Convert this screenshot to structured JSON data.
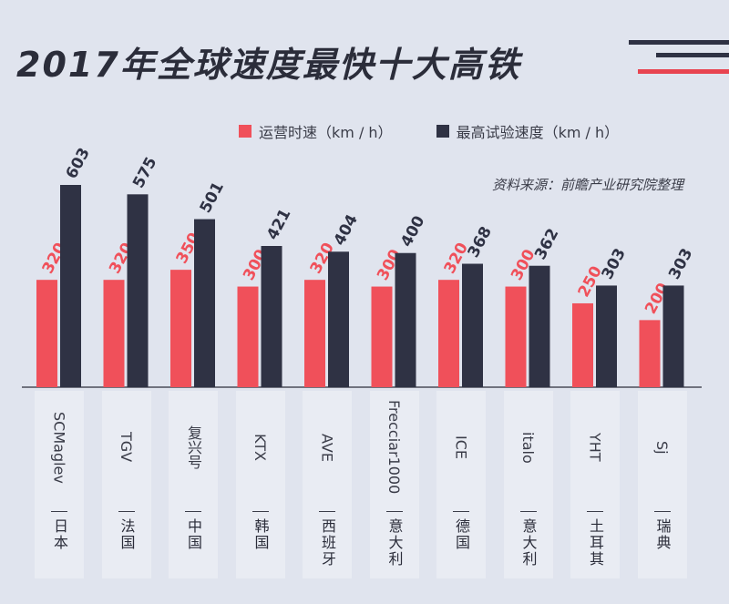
{
  "title": "2017年全球速度最快十大高铁",
  "source": "资料来源：前瞻产业研究院整理",
  "colors": {
    "operating": "#f0505a",
    "test": "#2f3244",
    "background": "#e0e4ee",
    "deco_red": "#e84450",
    "deco_dark": "#2f3244"
  },
  "chart_data": {
    "type": "bar",
    "title": "2017年全球速度最快十大高铁",
    "categories": [
      "SCMaglev",
      "TGV",
      "复兴号",
      "KTX",
      "AVE",
      "Frecciar1000",
      "ICE",
      "italo",
      "YHT",
      "Sj"
    ],
    "countries": [
      "日本",
      "法国",
      "中国",
      "韩国",
      "西班牙",
      "意大利",
      "德国",
      "意大利",
      "土耳其",
      "瑞典"
    ],
    "series": [
      {
        "name": "运营时速（km / h）",
        "values": [
          320,
          320,
          350,
          300,
          320,
          300,
          320,
          300,
          250,
          200
        ]
      },
      {
        "name": "最高试验速度（km / h）",
        "values": [
          603,
          575,
          501,
          421,
          404,
          400,
          368,
          362,
          303,
          303
        ]
      }
    ],
    "ylim": [
      0,
      650
    ],
    "legend": "top-right",
    "grid": false
  }
}
